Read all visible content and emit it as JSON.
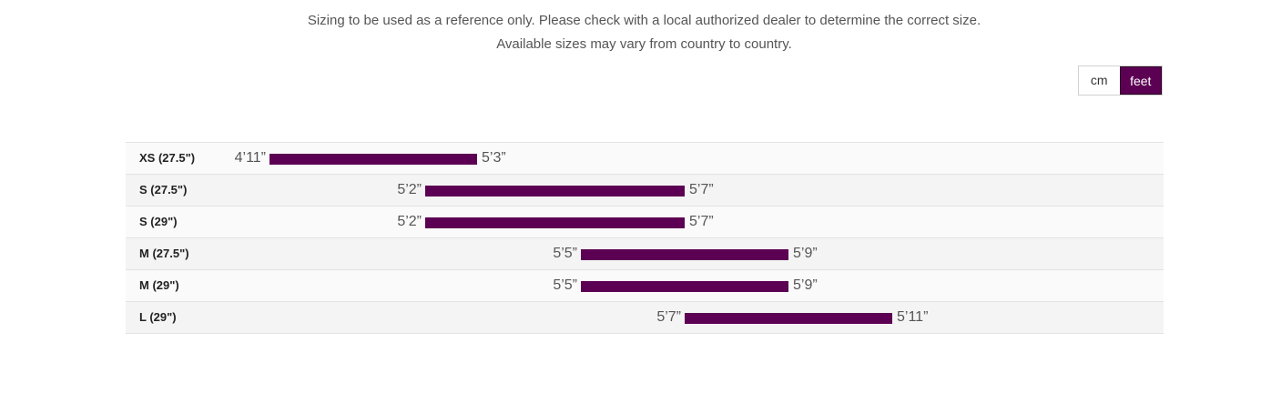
{
  "notice": {
    "line1": "Sizing to be used as a reference only. Please check with a local authorized dealer to determine the correct size.",
    "line2": "Available sizes may vary from country to country."
  },
  "units": {
    "cm_label": "cm",
    "feet_label": "feet",
    "selected": "feet"
  },
  "colors": {
    "bar": "#5c0053",
    "active_toggle": "#5c0053"
  },
  "chart_data": {
    "type": "bar",
    "orientation": "horizontal-range",
    "x_unit": "inches",
    "xlim": [
      52,
      75
    ],
    "categories": [
      "XS (27.5\")",
      "S (27.5\")",
      "S (29\")",
      "M (27.5\")",
      "M (29\")",
      "L (29\")"
    ],
    "ranges": [
      {
        "size": "XS (27.5\")",
        "min": 59,
        "max": 63,
        "min_label": "4’11”",
        "max_label": "5’3”"
      },
      {
        "size": "S (27.5\")",
        "min": 62,
        "max": 67,
        "min_label": "5’2”",
        "max_label": "5’7”"
      },
      {
        "size": "S (29\")",
        "min": 62,
        "max": 67,
        "min_label": "5’2”",
        "max_label": "5’7”"
      },
      {
        "size": "M (27.5\")",
        "min": 65,
        "max": 69,
        "min_label": "5’5”",
        "max_label": "5’9”"
      },
      {
        "size": "M (29\")",
        "min": 65,
        "max": 69,
        "min_label": "5’5”",
        "max_label": "5’9”"
      },
      {
        "size": "L (29\")",
        "min": 67,
        "max": 71,
        "min_label": "5’7”",
        "max_label": "5’11”"
      }
    ]
  }
}
